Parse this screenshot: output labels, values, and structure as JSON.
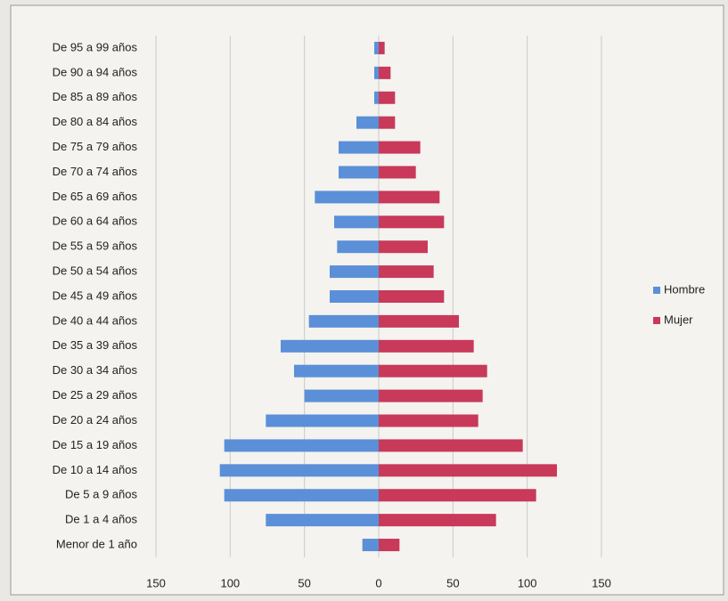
{
  "chart_data": {
    "type": "bar",
    "orientation": "horizontal",
    "categories": [
      "De 95 a 99 años",
      "De 90 a 94 años",
      "De 85 a 89 años",
      "De 80 a 84 años",
      "De 75 a 79 años",
      "De 70 a 74 años",
      "De 65 a 69 años",
      "De 60 a 64 años",
      "De 55 a 59 años",
      "De 50 a 54 años",
      "De 45 a 49 años",
      "De 40 a 44 años",
      "De 35 a 39 años",
      "De 30 a 34 años",
      "De 25 a 29 años",
      "De 20 a 24 años",
      "De 15 a 19 años",
      "De 10 a 14 años",
      "De 5 a 9 años",
      "De 1 a 4 años",
      "Menor de 1 año"
    ],
    "series": [
      {
        "name": "Hombre",
        "color": "#5b8fd8",
        "values": [
          -3,
          -3,
          -3,
          -15,
          -27,
          -27,
          -43,
          -30,
          -28,
          -33,
          -33,
          -47,
          -66,
          -57,
          -50,
          -76,
          -104,
          -107,
          -104,
          -76,
          -11
        ]
      },
      {
        "name": "Mujer",
        "color": "#c8395a",
        "values": [
          4,
          8,
          11,
          11,
          28,
          25,
          41,
          44,
          33,
          37,
          44,
          54,
          64,
          73,
          70,
          67,
          97,
          120,
          106,
          79,
          14
        ]
      }
    ],
    "xlim": [
      -150,
      150
    ],
    "xticks": [
      {
        "value": -150,
        "label": "150"
      },
      {
        "value": -100,
        "label": "100"
      },
      {
        "value": -50,
        "label": "50"
      },
      0,
      50,
      100,
      150
    ],
    "grid": true,
    "legend": "right"
  }
}
